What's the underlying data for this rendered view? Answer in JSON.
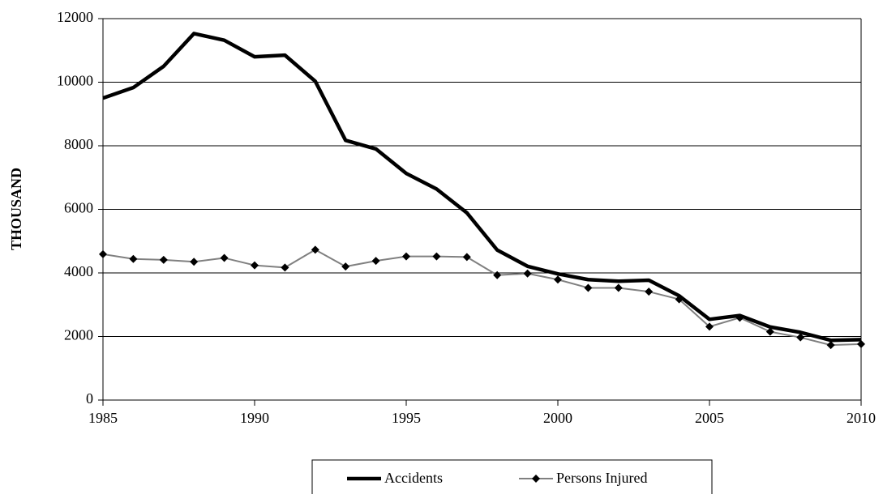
{
  "chart_data": {
    "type": "line",
    "y_label": "THOUSAND",
    "x": [
      1985,
      1986,
      1987,
      1988,
      1989,
      1990,
      1991,
      1992,
      1993,
      1994,
      1995,
      1996,
      1997,
      1998,
      1999,
      2000,
      2001,
      2002,
      2003,
      2004,
      2005,
      2006,
      2007,
      2008,
      2009,
      2010
    ],
    "series": [
      {
        "name": "Accidents",
        "color": "#000000",
        "marker": null,
        "values": [
          9500,
          9830,
          10500,
          11530,
          11320,
          10800,
          10850,
          10030,
          8170,
          7900,
          7130,
          6640,
          5890,
          4720,
          4210,
          3970,
          3790,
          3740,
          3770,
          3280,
          2540,
          2660,
          2300,
          2130,
          1880,
          1900
        ]
      },
      {
        "name": "Persons Injured",
        "color": "#808080",
        "marker": "diamond",
        "values": [
          4590,
          4440,
          4410,
          4350,
          4470,
          4240,
          4170,
          4730,
          4200,
          4380,
          4520,
          4520,
          4500,
          3930,
          3980,
          3790,
          3530,
          3530,
          3410,
          3170,
          2310,
          2590,
          2150,
          1970,
          1730,
          1760
        ]
      }
    ],
    "xlim": [
      1985,
      2010
    ],
    "xticks": [
      1985,
      1990,
      1995,
      2000,
      2005,
      2010
    ],
    "ylim": [
      0,
      12000
    ],
    "yticks": [
      0,
      2000,
      4000,
      6000,
      8000,
      10000,
      12000
    ],
    "grid": true,
    "legend": "bottom"
  }
}
